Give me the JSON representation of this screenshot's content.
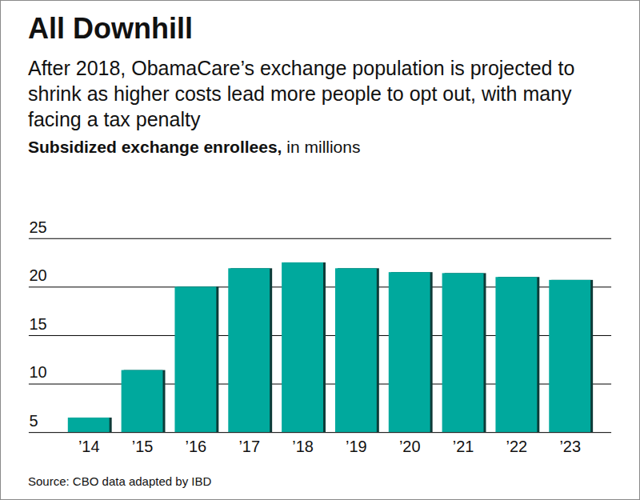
{
  "chart_data": {
    "type": "bar",
    "title": "All Downhill",
    "subtitle": "After 2018, ObamaCare’s exchange population is projected to shrink as higher costs lead more people to opt out, with many facing a tax penalty",
    "ylabel": "Subsidized exchange enrollees, in millions",
    "source": "Source: CBO data adapted by IBD",
    "categories": [
      "’14",
      "’15",
      "’16",
      "’17",
      "’18",
      "’19",
      "’20",
      "’21",
      "’22",
      "’23"
    ],
    "values": [
      6.5,
      11.4,
      20,
      21.9,
      22.5,
      21.9,
      21.5,
      21.4,
      21,
      20.7
    ],
    "color": "#00a99d",
    "ylim": [
      5,
      25
    ],
    "yticks": [
      5,
      10,
      15,
      20,
      25
    ],
    "grid": true
  }
}
